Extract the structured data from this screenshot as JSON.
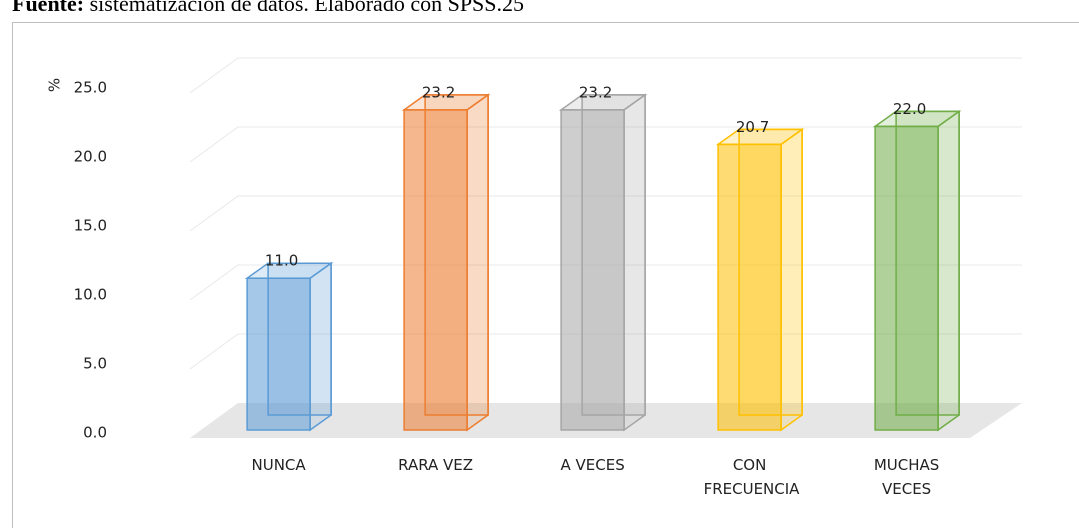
{
  "chart_data": {
    "type": "bar3d",
    "source_label": "Fuente:",
    "source_text": "sistematización de datos. Elaborado con SPSS.25",
    "ylabel": "%",
    "categories": [
      "NUNCA",
      "RARA VEZ",
      "A VECES",
      "CON FRECUENCIA",
      "MUCHAS VECES"
    ],
    "values": [
      11.0,
      23.2,
      23.2,
      20.7,
      22.0
    ],
    "value_labels": [
      "11.0",
      "23.2",
      "23.2",
      "20.7",
      "22.0"
    ],
    "colors": [
      "#5b9bd5",
      "#ed7d31",
      "#a5a5a5",
      "#ffc000",
      "#70ad47"
    ],
    "ylim": [
      0,
      25
    ],
    "yticks": [
      {
        "value": 0,
        "label": "0.0"
      },
      {
        "value": 5,
        "label": "5.0"
      },
      {
        "value": 10,
        "label": "10.0"
      },
      {
        "value": 15,
        "label": "15.0"
      },
      {
        "value": 20,
        "label": "20.0"
      },
      {
        "value": 25,
        "label": "25.0"
      }
    ],
    "grid": true
  }
}
